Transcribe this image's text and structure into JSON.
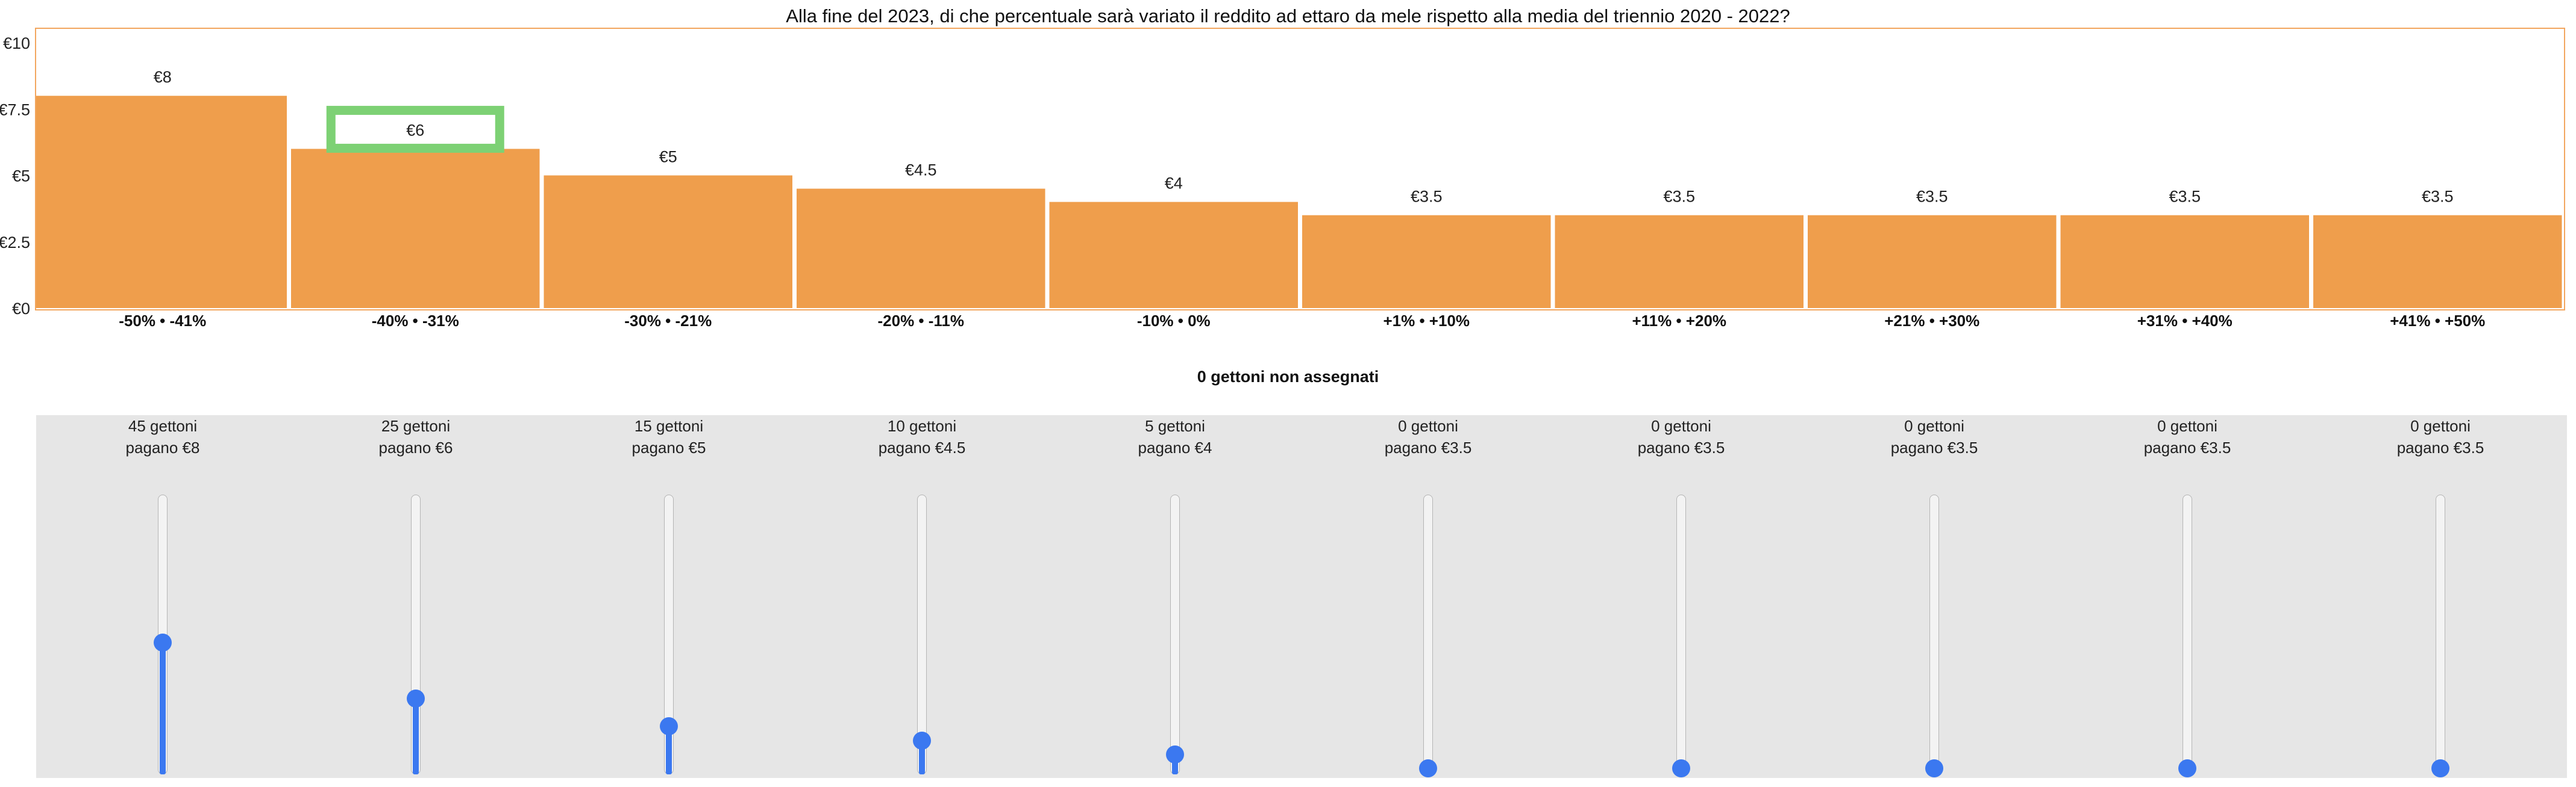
{
  "question": "Alla fine del 2023, di che percentuale sarà variato il reddito ad ettaro da mele rispetto alla media del triennio 2020 - 2022?",
  "colors": {
    "bar": "#ef9e4c",
    "frame": "#f2a65f",
    "highlight": "#7dd174",
    "slider": "#3b78f0",
    "panel": "#e6e6e6"
  },
  "chart_data": {
    "type": "bar",
    "title": "Alla fine del 2023, di che percentuale sarà variato il reddito ad ettaro da mele rispetto alla media del triennio 2020 - 2022?",
    "categories": [
      "-50% • -41%",
      "-40% • -31%",
      "-30% • -21%",
      "-20% • -11%",
      "-10% • 0%",
      "+1% • +10%",
      "+11% • +20%",
      "+21% • +30%",
      "+31% • +40%",
      "+41% • +50%"
    ],
    "values": [
      8,
      6,
      5,
      4.5,
      4,
      3.5,
      3.5,
      3.5,
      3.5,
      3.5
    ],
    "value_labels": [
      "€8",
      "€6",
      "€5",
      "€4.5",
      "€4",
      "€3.5",
      "€3.5",
      "€3.5",
      "€3.5",
      "€3.5"
    ],
    "y_ticks": [
      0,
      2.5,
      5,
      7.5,
      10
    ],
    "y_tick_labels": [
      "€0",
      "€2.5",
      "€5",
      "€7.5",
      "€10"
    ],
    "ylim": [
      0,
      10.5
    ],
    "highlighted_index": 1,
    "grid": false,
    "xlabel": "",
    "ylabel": ""
  },
  "unassigned_label": "0 gettoni non assegnati",
  "total_tokens": 100,
  "sliders": [
    {
      "tokens": 45,
      "line1": "45 gettoni",
      "line2": "pagano €8"
    },
    {
      "tokens": 25,
      "line1": "25 gettoni",
      "line2": "pagano €6"
    },
    {
      "tokens": 15,
      "line1": "15 gettoni",
      "line2": "pagano €5"
    },
    {
      "tokens": 10,
      "line1": "10 gettoni",
      "line2": "pagano €4.5"
    },
    {
      "tokens": 5,
      "line1": "5 gettoni",
      "line2": "pagano €4"
    },
    {
      "tokens": 0,
      "line1": "0 gettoni",
      "line2": "pagano €3.5"
    },
    {
      "tokens": 0,
      "line1": "0 gettoni",
      "line2": "pagano €3.5"
    },
    {
      "tokens": 0,
      "line1": "0 gettoni",
      "line2": "pagano €3.5"
    },
    {
      "tokens": 0,
      "line1": "0 gettoni",
      "line2": "pagano €3.5"
    },
    {
      "tokens": 0,
      "line1": "0 gettoni",
      "line2": "pagano €3.5"
    }
  ]
}
